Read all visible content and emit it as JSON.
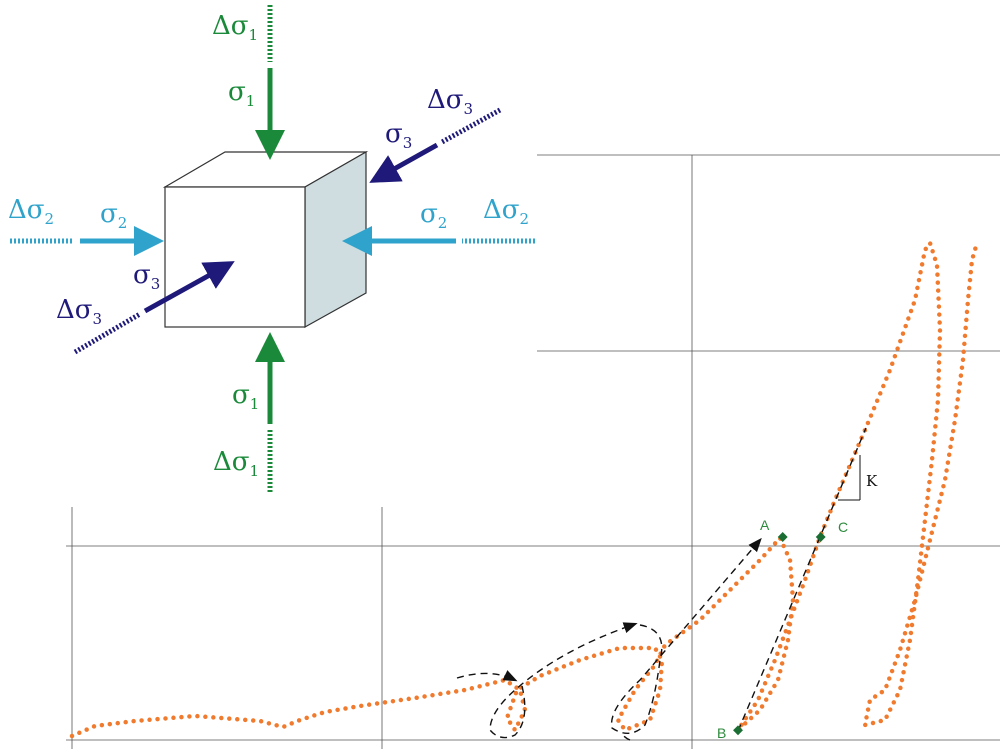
{
  "labels": [
    {
      "base": "Δσ",
      "sub": "1"
    },
    {
      "base": "σ",
      "sub": "1"
    },
    {
      "base": "σ",
      "sub": "3"
    },
    {
      "base": "Δσ",
      "sub": "3"
    },
    {
      "base": "Δσ",
      "sub": "2"
    },
    {
      "base": "σ",
      "sub": "2"
    },
    {
      "base": "σ",
      "sub": "2"
    },
    {
      "base": "Δσ",
      "sub": "2"
    },
    {
      "base": "σ",
      "sub": "3"
    },
    {
      "base": "Δσ",
      "sub": "3"
    },
    {
      "base": "σ",
      "sub": "1"
    },
    {
      "base": "Δσ",
      "sub": "1"
    }
  ],
  "points": [
    "A",
    "B",
    "C"
  ],
  "slope_label": "K"
}
